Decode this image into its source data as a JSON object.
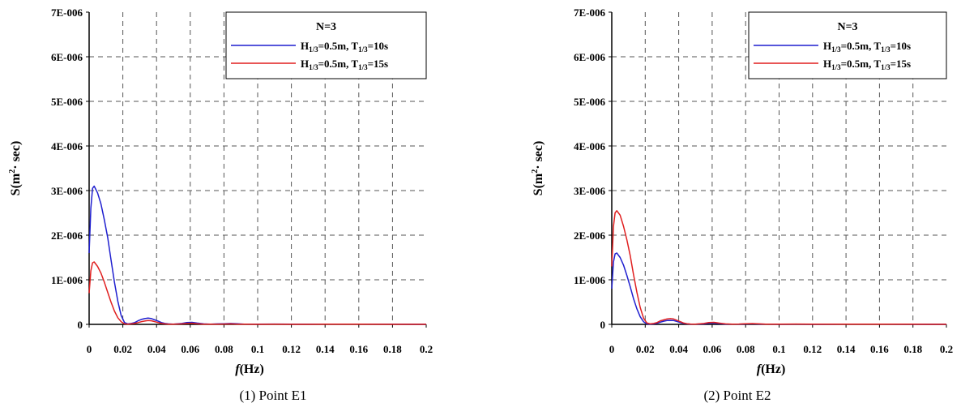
{
  "chart_data": [
    {
      "type": "line",
      "caption": "(1)  Point  E1",
      "xlabel_italic": "f",
      "xlabel_rest": "(Hz)",
      "ylabel_main": "S(m",
      "ylabel_sup": "2",
      "ylabel_rest": "· sec)",
      "xlim": [
        0,
        0.2
      ],
      "ylim": [
        0,
        7e-06
      ],
      "x_ticks": [
        "0",
        "0.02",
        "0.04",
        "0.06",
        "0.08",
        "0.1",
        "0.12",
        "0.14",
        "0.16",
        "0.18",
        "0.2"
      ],
      "y_ticks": [
        "0",
        "1E-006",
        "2E-006",
        "3E-006",
        "4E-006",
        "5E-006",
        "6E-006",
        "7E-006"
      ],
      "grid": true,
      "legend": {
        "placement": "top-right",
        "title": "N=3",
        "entries": [
          {
            "h_base": "H",
            "h_sub": "1/3",
            "t_text": "=0.5m, T",
            "t_sub": "1/3",
            "tail": "=10s",
            "color": "#1f1fcf"
          },
          {
            "h_base": "H",
            "h_sub": "1/3",
            "t_text": "=0.5m, T",
            "t_sub": "1/3",
            "tail": "=15s",
            "color": "#e01f1f"
          }
        ]
      },
      "series": [
        {
          "color": "#1f1fcf",
          "x": [
            0,
            0.001,
            0.002,
            0.003,
            0.005,
            0.007,
            0.009,
            0.011,
            0.013,
            0.015,
            0.017,
            0.019,
            0.021,
            0.023,
            0.025,
            0.027,
            0.029,
            0.031,
            0.033,
            0.035,
            0.037,
            0.039,
            0.041,
            0.043,
            0.045,
            0.047,
            0.05,
            0.055,
            0.058,
            0.061,
            0.064,
            0.068,
            0.072,
            0.076,
            0.08,
            0.084,
            0.088,
            0.092,
            0.1,
            0.11,
            0.12,
            0.14,
            0.16,
            0.18,
            0.2
          ],
          "y": [
            1.6e-06,
            2.6e-06,
            3.05e-06,
            3.1e-06,
            2.95e-06,
            2.7e-06,
            2.35e-06,
            1.95e-06,
            1.45e-06,
            9.5e-07,
            5.2e-07,
            2e-07,
            4e-08,
            1e-08,
            2e-08,
            4e-08,
            8e-08,
            1.1e-07,
            1.3e-07,
            1.4e-07,
            1.3e-07,
            1e-07,
            7e-08,
            4e-08,
            2e-08,
            1e-08,
            5e-09,
            2e-08,
            4e-08,
            4.5e-08,
            3e-08,
            1e-08,
            5e-09,
            1e-08,
            1.5e-08,
            2e-08,
            1.2e-08,
            5e-09,
            4e-09,
            8e-09,
            4e-09,
            5e-09,
            5e-09,
            3e-09,
            2e-09
          ]
        },
        {
          "color": "#e01f1f",
          "x": [
            0,
            0.001,
            0.002,
            0.003,
            0.005,
            0.007,
            0.009,
            0.011,
            0.013,
            0.015,
            0.017,
            0.019,
            0.021,
            0.023,
            0.025,
            0.027,
            0.029,
            0.031,
            0.033,
            0.035,
            0.037,
            0.039,
            0.041,
            0.043,
            0.045,
            0.047,
            0.05,
            0.055,
            0.058,
            0.061,
            0.064,
            0.068,
            0.072,
            0.076,
            0.08,
            0.084,
            0.088,
            0.092,
            0.1,
            0.11,
            0.12,
            0.14,
            0.16,
            0.18,
            0.2
          ],
          "y": [
            7e-07,
            1.2e-06,
            1.38e-06,
            1.4e-06,
            1.3e-06,
            1.15e-06,
            9.5e-07,
            7.2e-07,
            5e-07,
            3e-07,
            1.5e-07,
            6e-08,
            1e-08,
            5e-09,
            1e-08,
            2e-08,
            4e-08,
            6e-08,
            7.5e-08,
            8.5e-08,
            8e-08,
            6e-08,
            4e-08,
            2e-08,
            1e-08,
            5e-09,
            3e-09,
            1e-08,
            2e-08,
            2.5e-08,
            1.5e-08,
            5e-09,
            3e-09,
            5e-09,
            8e-09,
            1e-08,
            6e-09,
            3e-09,
            2e-09,
            4e-09,
            2e-09,
            3e-09,
            3e-09,
            2e-09,
            1e-09
          ]
        }
      ]
    },
    {
      "type": "line",
      "caption": "(2)  Point  E2",
      "xlabel_italic": "f",
      "xlabel_rest": "(Hz)",
      "ylabel_main": "S(m",
      "ylabel_sup": "2",
      "ylabel_rest": "· sec)",
      "xlim": [
        0,
        0.2
      ],
      "ylim": [
        0,
        7e-06
      ],
      "x_ticks": [
        "0",
        "0.02",
        "0.04",
        "0.06",
        "0.08",
        "0.1",
        "0.12",
        "0.14",
        "0.16",
        "0.18",
        "0.2"
      ],
      "y_ticks": [
        "0",
        "1E-006",
        "2E-006",
        "3E-006",
        "4E-006",
        "5E-006",
        "6E-006",
        "7E-006"
      ],
      "grid": true,
      "legend": {
        "placement": "top-right",
        "title": "N=3",
        "entries": [
          {
            "h_base": "H",
            "h_sub": "1/3",
            "t_text": "=0.5m, T",
            "t_sub": "1/3",
            "tail": "=10s",
            "color": "#1f1fcf"
          },
          {
            "h_base": "H",
            "h_sub": "1/3",
            "t_text": "=0.5m, T",
            "t_sub": "1/3",
            "tail": "=15s",
            "color": "#e01f1f"
          }
        ]
      },
      "series": [
        {
          "color": "#1f1fcf",
          "x": [
            0,
            0.001,
            0.002,
            0.003,
            0.005,
            0.007,
            0.009,
            0.011,
            0.013,
            0.015,
            0.017,
            0.019,
            0.021,
            0.023,
            0.025,
            0.027,
            0.029,
            0.031,
            0.033,
            0.035,
            0.037,
            0.039,
            0.041,
            0.043,
            0.045,
            0.047,
            0.05,
            0.055,
            0.058,
            0.061,
            0.064,
            0.068,
            0.072,
            0.076,
            0.08,
            0.084,
            0.088,
            0.092,
            0.1,
            0.11,
            0.12,
            0.14,
            0.16,
            0.18,
            0.2
          ],
          "y": [
            8e-07,
            1.4e-06,
            1.58e-06,
            1.6e-06,
            1.5e-06,
            1.33e-06,
            1.1e-06,
            8.5e-07,
            5.8e-07,
            3.5e-07,
            1.7e-07,
            6e-08,
            1e-08,
            5e-09,
            1e-08,
            2.5e-08,
            5e-08,
            7e-08,
            8.5e-08,
            9e-08,
            8.5e-08,
            6.5e-08,
            4e-08,
            2e-08,
            1e-08,
            5e-09,
            3e-09,
            1e-08,
            2.5e-08,
            3e-08,
            1.8e-08,
            6e-09,
            3e-09,
            5e-09,
            9e-09,
            1.2e-08,
            7e-09,
            3e-09,
            2e-09,
            5e-09,
            2e-09,
            3e-09,
            4e-09,
            2e-09,
            1e-09
          ]
        },
        {
          "color": "#e01f1f",
          "x": [
            0,
            0.001,
            0.002,
            0.003,
            0.005,
            0.007,
            0.009,
            0.011,
            0.013,
            0.015,
            0.017,
            0.019,
            0.021,
            0.023,
            0.025,
            0.027,
            0.029,
            0.031,
            0.033,
            0.035,
            0.037,
            0.039,
            0.041,
            0.043,
            0.045,
            0.047,
            0.05,
            0.055,
            0.058,
            0.061,
            0.064,
            0.068,
            0.072,
            0.076,
            0.08,
            0.084,
            0.088,
            0.092,
            0.1,
            0.11,
            0.12,
            0.14,
            0.16,
            0.18,
            0.2
          ],
          "y": [
            1.3e-06,
            2.2e-06,
            2.5e-06,
            2.55e-06,
            2.45e-06,
            2.2e-06,
            1.9e-06,
            1.55e-06,
            1.12e-06,
            7.2e-07,
            3.8e-07,
            1.4e-07,
            3e-08,
            1e-08,
            2e-08,
            4e-08,
            8e-08,
            1e-07,
            1.2e-07,
            1.3e-07,
            1.2e-07,
            9e-08,
            6e-08,
            3e-08,
            1.5e-08,
            8e-09,
            4e-09,
            2e-08,
            4e-08,
            4.5e-08,
            3e-08,
            1e-08,
            5e-09,
            8e-09,
            1.4e-08,
            1.8e-08,
            1e-08,
            5e-09,
            4e-09,
            7e-09,
            4e-09,
            4e-09,
            5e-09,
            3e-09,
            2e-09
          ]
        }
      ]
    }
  ]
}
